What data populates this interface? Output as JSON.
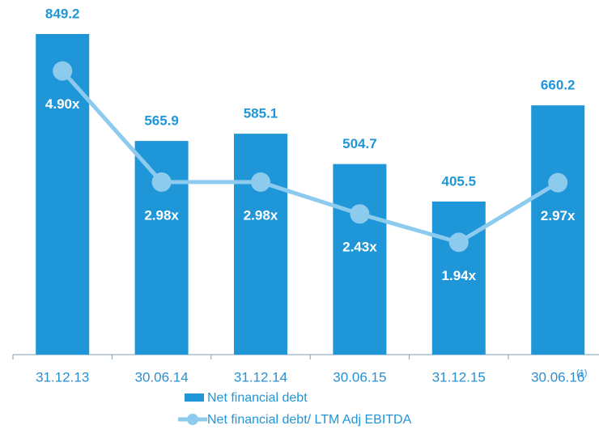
{
  "chart_data": {
    "type": "bar",
    "categories": [
      "31.12.13",
      "30.06.14",
      "31.12.14",
      "30.06.15",
      "31.12.15",
      "30.06.16"
    ],
    "annotation": "(1)",
    "ylim": [
      0,
      900
    ],
    "y2lim": [
      0,
      6
    ],
    "series": [
      {
        "name": "Net financial debt",
        "type": "bar",
        "color": "#1f96d8",
        "values": [
          849.2,
          565.9,
          585.1,
          504.7,
          405.5,
          660.2
        ]
      },
      {
        "name": "Net financial debt/ LTM Adj EBITDA",
        "type": "line",
        "axis": "y2",
        "color": "#8ccbee",
        "values": [
          4.9,
          2.98,
          2.98,
          2.43,
          1.94,
          2.97
        ],
        "value_labels": [
          "4.90x",
          "2.98x",
          "2.98x",
          "2.43x",
          "1.94x",
          "2.97x"
        ]
      }
    ]
  }
}
